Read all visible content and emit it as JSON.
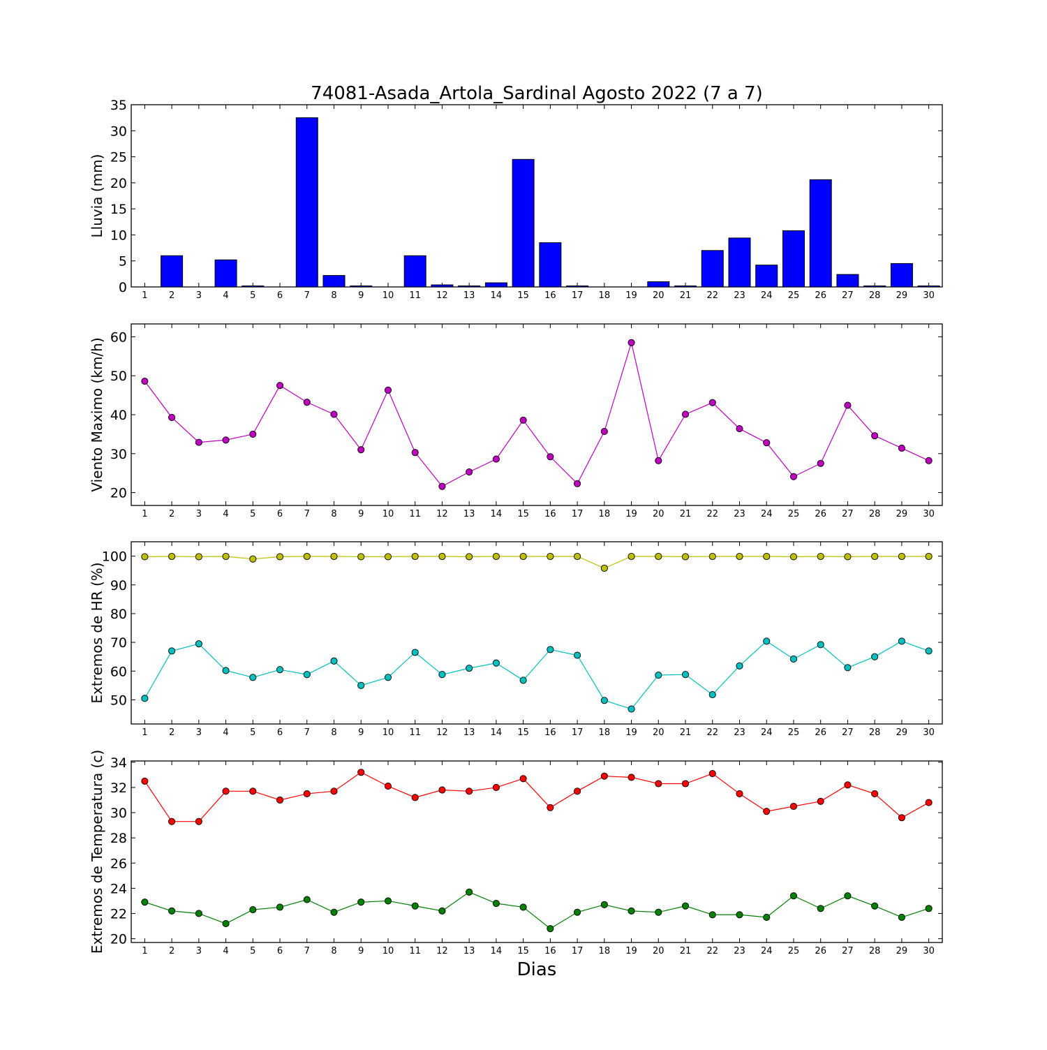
{
  "title": "74081-Asada_Artola_Sardinal Agosto 2022  (7 a 7)",
  "xlabel": "Dias",
  "colors": {
    "bar_fill": "#0000ff",
    "wind": "#bf00bf",
    "hr_max": "#bfbf00",
    "hr_min": "#00bfbf",
    "temp_max": "#ff0000",
    "temp_min": "#008000"
  },
  "chart_data": [
    {
      "type": "bar",
      "ylabel": "Lluvia (mm)",
      "ylim": [
        0,
        35
      ],
      "yticks": [
        0,
        5,
        10,
        15,
        20,
        25,
        30,
        35
      ],
      "x": [
        1,
        2,
        3,
        4,
        5,
        6,
        7,
        8,
        9,
        10,
        11,
        12,
        13,
        14,
        15,
        16,
        17,
        18,
        19,
        20,
        21,
        22,
        23,
        24,
        25,
        26,
        27,
        28,
        29,
        30
      ],
      "series": [
        {
          "values": [
            0,
            6.0,
            0,
            5.2,
            0.2,
            0,
            32.5,
            2.2,
            0.2,
            0,
            6.0,
            0.4,
            0.2,
            0.8,
            24.5,
            8.5,
            0.2,
            0,
            0,
            1.0,
            0.2,
            7.0,
            9.4,
            4.2,
            10.8,
            20.6,
            2.4,
            0.2,
            4.5,
            0.2
          ]
        }
      ]
    },
    {
      "type": "line",
      "ylabel": "Viento Maximo (km/h)",
      "ylim": [
        16.7,
        63.3
      ],
      "yticks": [
        20,
        30,
        40,
        50,
        60
      ],
      "x": [
        1,
        2,
        3,
        4,
        5,
        6,
        7,
        8,
        9,
        10,
        11,
        12,
        13,
        14,
        15,
        16,
        17,
        18,
        19,
        20,
        21,
        22,
        23,
        24,
        25,
        26,
        27,
        28,
        29,
        30
      ],
      "series": [
        {
          "values": [
            48.6,
            39.3,
            32.9,
            33.5,
            35.0,
            47.5,
            43.2,
            40.1,
            31.0,
            46.3,
            30.3,
            21.6,
            25.3,
            28.6,
            38.6,
            29.2,
            22.3,
            35.7,
            58.5,
            28.2,
            40.1,
            43.1,
            36.4,
            32.8,
            24.1,
            27.5,
            42.4,
            34.6,
            31.4,
            28.2
          ]
        }
      ]
    },
    {
      "type": "line",
      "ylabel": "Extremos de HR (%)",
      "ylim": [
        41.6,
        105
      ],
      "yticks": [
        50,
        60,
        70,
        80,
        90,
        100
      ],
      "x": [
        1,
        2,
        3,
        4,
        5,
        6,
        7,
        8,
        9,
        10,
        11,
        12,
        13,
        14,
        15,
        16,
        17,
        18,
        19,
        20,
        21,
        22,
        23,
        24,
        25,
        26,
        27,
        28,
        29,
        30
      ],
      "series": [
        {
          "values": [
            99.8,
            99.9,
            99.8,
            99.9,
            99.0,
            99.8,
            99.9,
            99.9,
            99.8,
            99.8,
            99.9,
            99.9,
            99.8,
            99.9,
            99.9,
            99.9,
            99.9,
            95.8,
            99.9,
            99.9,
            99.8,
            99.9,
            99.9,
            99.9,
            99.8,
            99.9,
            99.8,
            99.9,
            99.9,
            99.9
          ]
        },
        {
          "values": [
            50.5,
            67.0,
            69.5,
            60.2,
            57.8,
            60.5,
            58.8,
            63.5,
            55.0,
            57.8,
            66.5,
            58.8,
            61.0,
            62.8,
            56.8,
            67.5,
            65.5,
            49.8,
            46.8,
            58.6,
            58.8,
            51.8,
            61.8,
            70.4,
            64.2,
            69.2,
            61.2,
            65.0,
            70.4,
            67.0
          ]
        }
      ]
    },
    {
      "type": "line",
      "ylabel": "Extremos de Temperatura (c)",
      "ylim": [
        19.7,
        34.1
      ],
      "yticks": [
        20,
        22,
        24,
        26,
        28,
        30,
        32,
        34
      ],
      "x": [
        1,
        2,
        3,
        4,
        5,
        6,
        7,
        8,
        9,
        10,
        11,
        12,
        13,
        14,
        15,
        16,
        17,
        18,
        19,
        20,
        21,
        22,
        23,
        24,
        25,
        26,
        27,
        28,
        29,
        30
      ],
      "series": [
        {
          "values": [
            32.5,
            29.3,
            29.3,
            31.7,
            31.7,
            31.0,
            31.5,
            31.7,
            33.2,
            32.1,
            31.2,
            31.8,
            31.7,
            32.0,
            32.7,
            30.4,
            31.7,
            32.9,
            32.8,
            32.3,
            32.3,
            33.1,
            31.5,
            30.1,
            30.5,
            30.9,
            32.2,
            31.5,
            29.6,
            30.8
          ]
        },
        {
          "values": [
            22.9,
            22.2,
            22.0,
            21.2,
            22.3,
            22.5,
            23.1,
            22.1,
            22.9,
            23.0,
            22.6,
            22.2,
            23.7,
            22.8,
            22.5,
            20.8,
            22.1,
            22.7,
            22.2,
            22.1,
            22.6,
            21.9,
            21.9,
            21.7,
            23.4,
            22.4,
            23.4,
            22.6,
            21.7,
            22.4
          ]
        }
      ]
    }
  ]
}
